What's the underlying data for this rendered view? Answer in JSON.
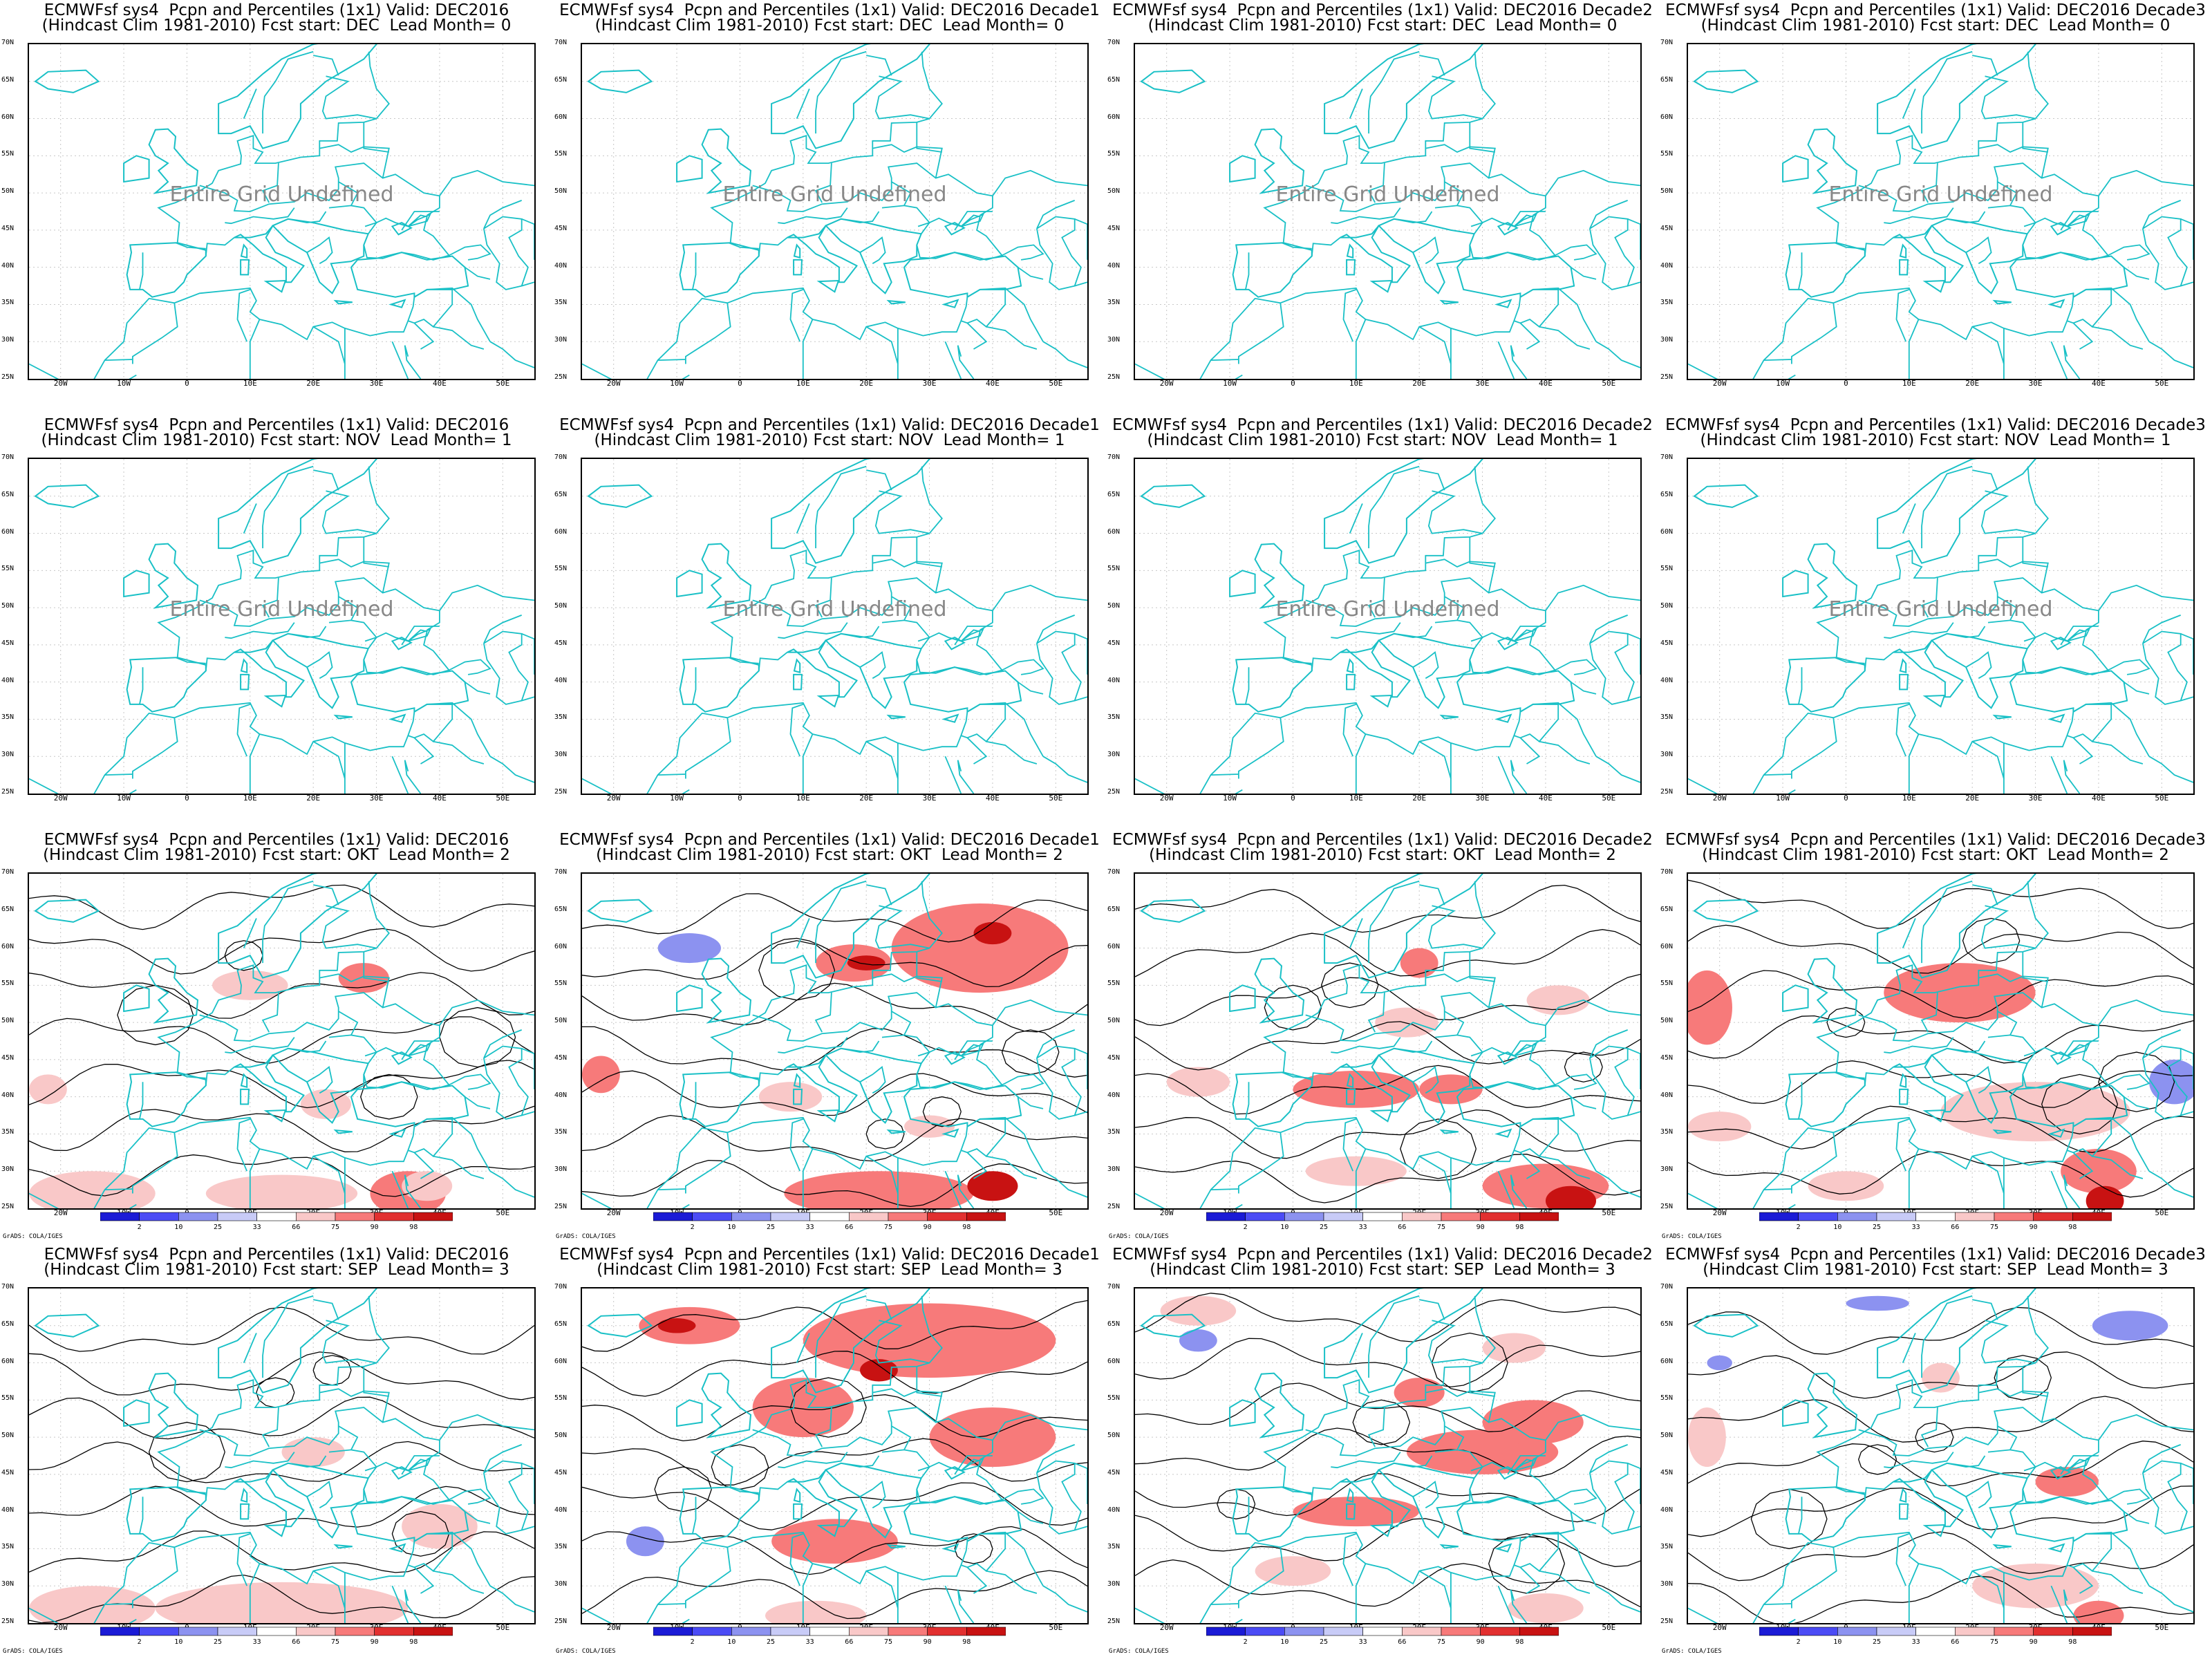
{
  "colors": {
    "coast": "#19c0c6",
    "red_light": "#f9c8c8",
    "red_mid": "#f77a7a",
    "red_dark": "#c81212",
    "blue": "#8c92f0",
    "contour": "#000000"
  },
  "common": {
    "ylabels": [
      "70N",
      "65N",
      "60N",
      "55N",
      "50N",
      "45N",
      "40N",
      "35N",
      "30N",
      "25N"
    ],
    "xlabels": [
      "20W",
      "10W",
      "0",
      "10E",
      "20E",
      "30E",
      "40E",
      "50E"
    ],
    "undefined_text": "Entire Grid Undefined",
    "colorbar_labels": [
      "2",
      "10",
      "25",
      "33",
      "66",
      "75",
      "90",
      "98"
    ],
    "credit": "GrADS: COLA/IGES"
  },
  "panels": [
    {
      "title1": "ECMWFsf sys4  Pcpn and Percentiles (1x1) Valid: DEC2016",
      "title2": "(Hindcast Clim 1981-2010) Fcst start: DEC  Lead Month= 0",
      "undefined": true
    },
    {
      "title1": "ECMWFsf sys4  Pcpn and Percentiles (1x1) Valid: DEC2016 Decade1",
      "title2": "(Hindcast Clim 1981-2010) Fcst start: DEC  Lead Month= 0",
      "undefined": true
    },
    {
      "title1": "ECMWFsf sys4  Pcpn and Percentiles (1x1) Valid: DEC2016 Decade2",
      "title2": "(Hindcast Clim 1981-2010) Fcst start: DEC  Lead Month= 0",
      "undefined": true
    },
    {
      "title1": "ECMWFsf sys4  Pcpn and Percentiles (1x1) Valid: DEC2016 Decade3",
      "title2": "(Hindcast Clim 1981-2010) Fcst start: DEC  Lead Month= 0",
      "undefined": true
    },
    {
      "title1": "ECMWFsf sys4  Pcpn and Percentiles (1x1) Valid: DEC2016",
      "title2": "(Hindcast Clim 1981-2010) Fcst start: NOV  Lead Month= 1",
      "undefined": true
    },
    {
      "title1": "ECMWFsf sys4  Pcpn and Percentiles (1x1) Valid: DEC2016 Decade1",
      "title2": "(Hindcast Clim 1981-2010) Fcst start: NOV  Lead Month= 1",
      "undefined": true
    },
    {
      "title1": "ECMWFsf sys4  Pcpn and Percentiles (1x1) Valid: DEC2016 Decade2",
      "title2": "(Hindcast Clim 1981-2010) Fcst start: NOV  Lead Month= 1",
      "undefined": true
    },
    {
      "title1": "ECMWFsf sys4  Pcpn and Percentiles (1x1) Valid: DEC2016 Decade3",
      "title2": "(Hindcast Clim 1981-2010) Fcst start: NOV  Lead Month= 1",
      "undefined": true
    },
    {
      "title1": "ECMWFsf sys4  Pcpn and Percentiles (1x1) Valid: DEC2016",
      "title2": "(Hindcast Clim 1981-2010) Fcst start: OKT  Lead Month= 2",
      "undefined": false
    },
    {
      "title1": "ECMWFsf sys4  Pcpn and Percentiles (1x1) Valid: DEC2016 Decade1",
      "title2": "(Hindcast Clim 1981-2010) Fcst start: OKT  Lead Month= 2",
      "undefined": false
    },
    {
      "title1": "ECMWFsf sys4  Pcpn and Percentiles (1x1) Valid: DEC2016 Decade2",
      "title2": "(Hindcast Clim 1981-2010) Fcst start: OKT  Lead Month= 2",
      "undefined": false
    },
    {
      "title1": "ECMWFsf sys4  Pcpn and Percentiles (1x1) Valid: DEC2016 Decade3",
      "title2": "(Hindcast Clim 1981-2010) Fcst start: OKT  Lead Month= 2",
      "undefined": false
    },
    {
      "title1": "ECMWFsf sys4  Pcpn and Percentiles (1x1) Valid: DEC2016",
      "title2": "(Hindcast Clim 1981-2010) Fcst start: SEP  Lead Month= 3",
      "undefined": false
    },
    {
      "title1": "ECMWFsf sys4  Pcpn and Percentiles (1x1) Valid: DEC2016 Decade1",
      "title2": "(Hindcast Clim 1981-2010) Fcst start: SEP  Lead Month= 3",
      "undefined": false
    },
    {
      "title1": "ECMWFsf sys4  Pcpn and Percentiles (1x1) Valid: DEC2016 Decade2",
      "title2": "(Hindcast Clim 1981-2010) Fcst start: SEP  Lead Month= 3",
      "undefined": false
    },
    {
      "title1": "ECMWFsf sys4  Pcpn and Percentiles (1x1) Valid: DEC2016 Decade3",
      "title2": "(Hindcast Clim 1981-2010) Fcst start: SEP  Lead Month= 3",
      "undefined": false
    }
  ]
}
